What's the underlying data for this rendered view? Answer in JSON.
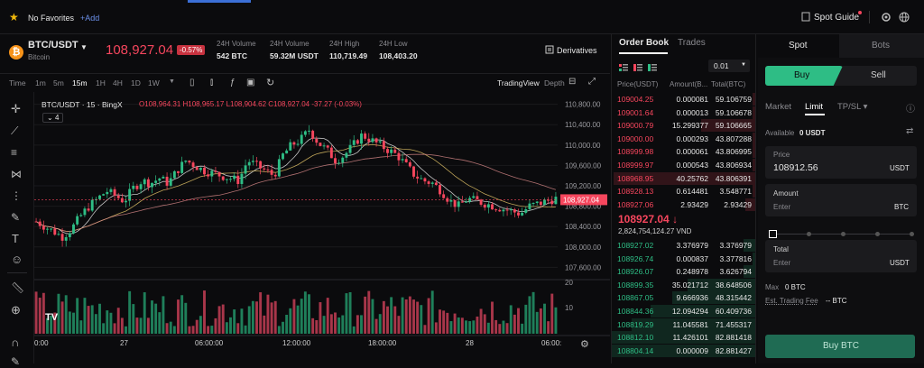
{
  "topbar": {
    "favorites": "No Favorites",
    "add": "+Add",
    "spot_guide": "Spot Guide"
  },
  "market": {
    "pair": "BTC/USDT",
    "name": "Bitcoin",
    "price": "108,927.04",
    "change": "-0.57%",
    "derivatives": "Derivatives",
    "stats": [
      {
        "label": "24H Volume",
        "value": "542 BTC"
      },
      {
        "label": "24H Volume",
        "value": "59.32M USDT"
      },
      {
        "label": "24H High",
        "value": "110,719.49"
      },
      {
        "label": "24H Low",
        "value": "108,403.20"
      }
    ]
  },
  "toolbar": {
    "time": "Time",
    "intervals": [
      "1m",
      "5m",
      "15m",
      "1H",
      "4H",
      "1D",
      "1W"
    ],
    "tradingview": "TradingView",
    "depth": "Depth"
  },
  "chart_data": {
    "type": "candlestick",
    "symbol": "BTC/USDT",
    "interval_label": "15",
    "source": "BingX",
    "ohlc_label": {
      "o": "O108,964.31",
      "h": "H108,965.17",
      "l": "L108,904.62",
      "c": "C108,927.04",
      "chg": "-37.27 (-0.03%)"
    },
    "indicator_count": "4",
    "yaxis_ticks": [
      "110,800.00",
      "110,400.00",
      "110,000.00",
      "109,600.00",
      "109,200.00",
      "108,800.00",
      "108,400.00",
      "108,000.00",
      "107,600.00"
    ],
    "price_tag": "108,927.04",
    "vol_ticks": [
      "20",
      "10"
    ],
    "xaxis_ticks": [
      "0:00",
      "27",
      "06:00:00",
      "12:00:00",
      "18:00:00",
      "28",
      "06:00:"
    ],
    "ylim": [
      107500,
      110900
    ],
    "last": 108927,
    "candles": []
  },
  "orderbook": {
    "tabs": [
      "Order Book",
      "Trades"
    ],
    "precision": "0.01",
    "headers": [
      "Price(USDT)",
      "Amount(B...",
      "Total(BTC)"
    ],
    "asks": [
      [
        "109004.25",
        "0.000081",
        "59.106759"
      ],
      [
        "109001.64",
        "0.000013",
        "59.106678"
      ],
      [
        "109000.79",
        "15.299377",
        "59.106665"
      ],
      [
        "109000.00",
        "0.000293",
        "43.807288"
      ],
      [
        "108999.98",
        "0.000061",
        "43.806995"
      ],
      [
        "108999.97",
        "0.000543",
        "43.806934"
      ],
      [
        "108968.95",
        "40.25762",
        "43.806391"
      ],
      [
        "108928.13",
        "0.614481",
        "3.548771"
      ],
      [
        "108927.06",
        "2.93429",
        "2.93429"
      ]
    ],
    "mid_price": "108927.04",
    "mid_arrow": "↓",
    "mid_fiat": "2,824,754,124.27 VND",
    "bids": [
      [
        "108927.02",
        "3.376979",
        "3.376979"
      ],
      [
        "108926.74",
        "0.000837",
        "3.377816"
      ],
      [
        "108926.07",
        "0.248978",
        "3.626794"
      ],
      [
        "108899.35",
        "35.021712",
        "38.648506"
      ],
      [
        "108867.05",
        "9.666936",
        "48.315442"
      ],
      [
        "108844.36",
        "12.094294",
        "60.409736"
      ],
      [
        "108819.29",
        "11.045581",
        "71.455317"
      ],
      [
        "108812.10",
        "11.426101",
        "82.881418"
      ],
      [
        "108804.14",
        "0.000009",
        "82.881427"
      ]
    ],
    "ask_depth": [
      0.02,
      0.02,
      0.38,
      0.02,
      0.02,
      0.02,
      0.99,
      0.02,
      0.07
    ],
    "bid_depth": [
      0.08,
      0.02,
      0.08,
      0.47,
      0.58,
      0.73,
      0.86,
      1.0,
      1.0
    ]
  },
  "trade": {
    "tabs": [
      "Spot",
      "Bots"
    ],
    "buy": "Buy",
    "sell": "Sell",
    "order_types": [
      "Market",
      "Limit",
      "TP/SL"
    ],
    "available_label": "Available",
    "available_value": "0 USDT",
    "price_label": "Price",
    "price_value": "108912.56",
    "price_unit": "USDT",
    "amount_label": "Amount",
    "amount_placeholder": "Enter",
    "amount_unit": "BTC",
    "total_label": "Total",
    "total_placeholder": "Enter",
    "total_unit": "USDT",
    "max_label": "Max",
    "max_value": "0 BTC",
    "fee_label": "Est. Trading Fee",
    "fee_value": "-- BTC",
    "buy_button": "Buy BTC"
  },
  "colors": {
    "up": "#2ebd85",
    "down": "#f6465d",
    "accent": "#2ebd85"
  }
}
